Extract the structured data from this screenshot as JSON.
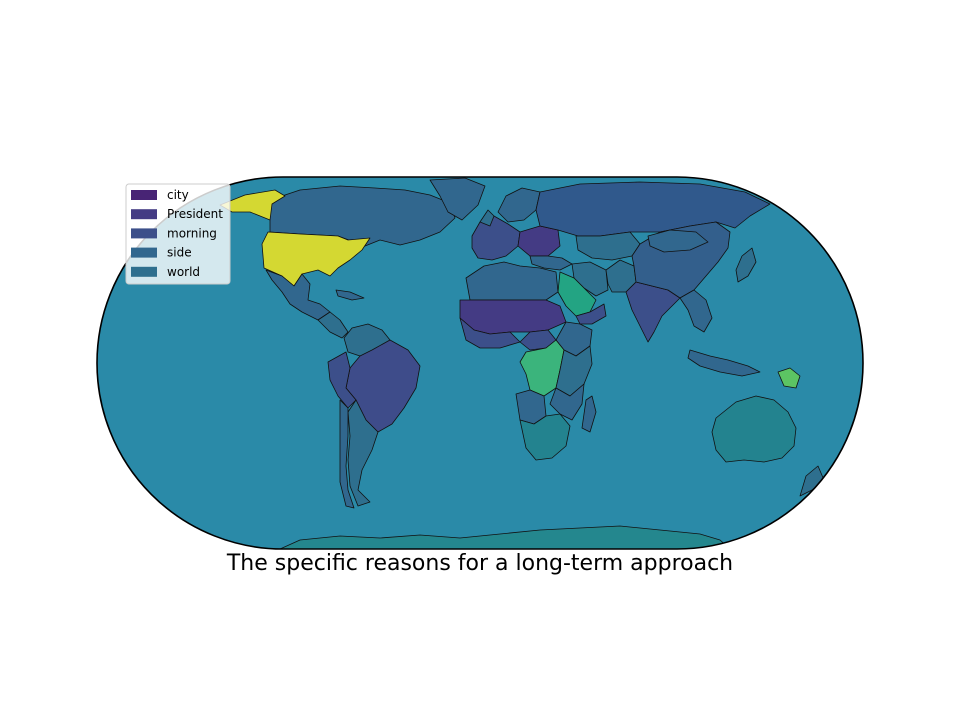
{
  "title": "The specific reasons for a long-term approach",
  "legend": {
    "placement": "top-left",
    "items": [
      {
        "label": "city",
        "color": "#482475"
      },
      {
        "label": "President",
        "color": "#443b84"
      },
      {
        "label": "morning",
        "color": "#3c4f8a"
      },
      {
        "label": "side",
        "color": "#31678e"
      },
      {
        "label": "world",
        "color": "#2e6f8e"
      }
    ]
  },
  "colors": {
    "ocean": "#2a8aa8",
    "border": "#111111",
    "united_states": "#d4d832",
    "congo_drc": "#3bb47c",
    "papua_new_guinea": "#5cc463",
    "saudi_arabia": "#23a483",
    "australia": "#23838f",
    "russia": "#30598c",
    "brazil": "#3e4c8a",
    "canada": "#31678e",
    "china": "#335f8c",
    "antarctica": "#24878e"
  },
  "projection": "Equal Earth"
}
